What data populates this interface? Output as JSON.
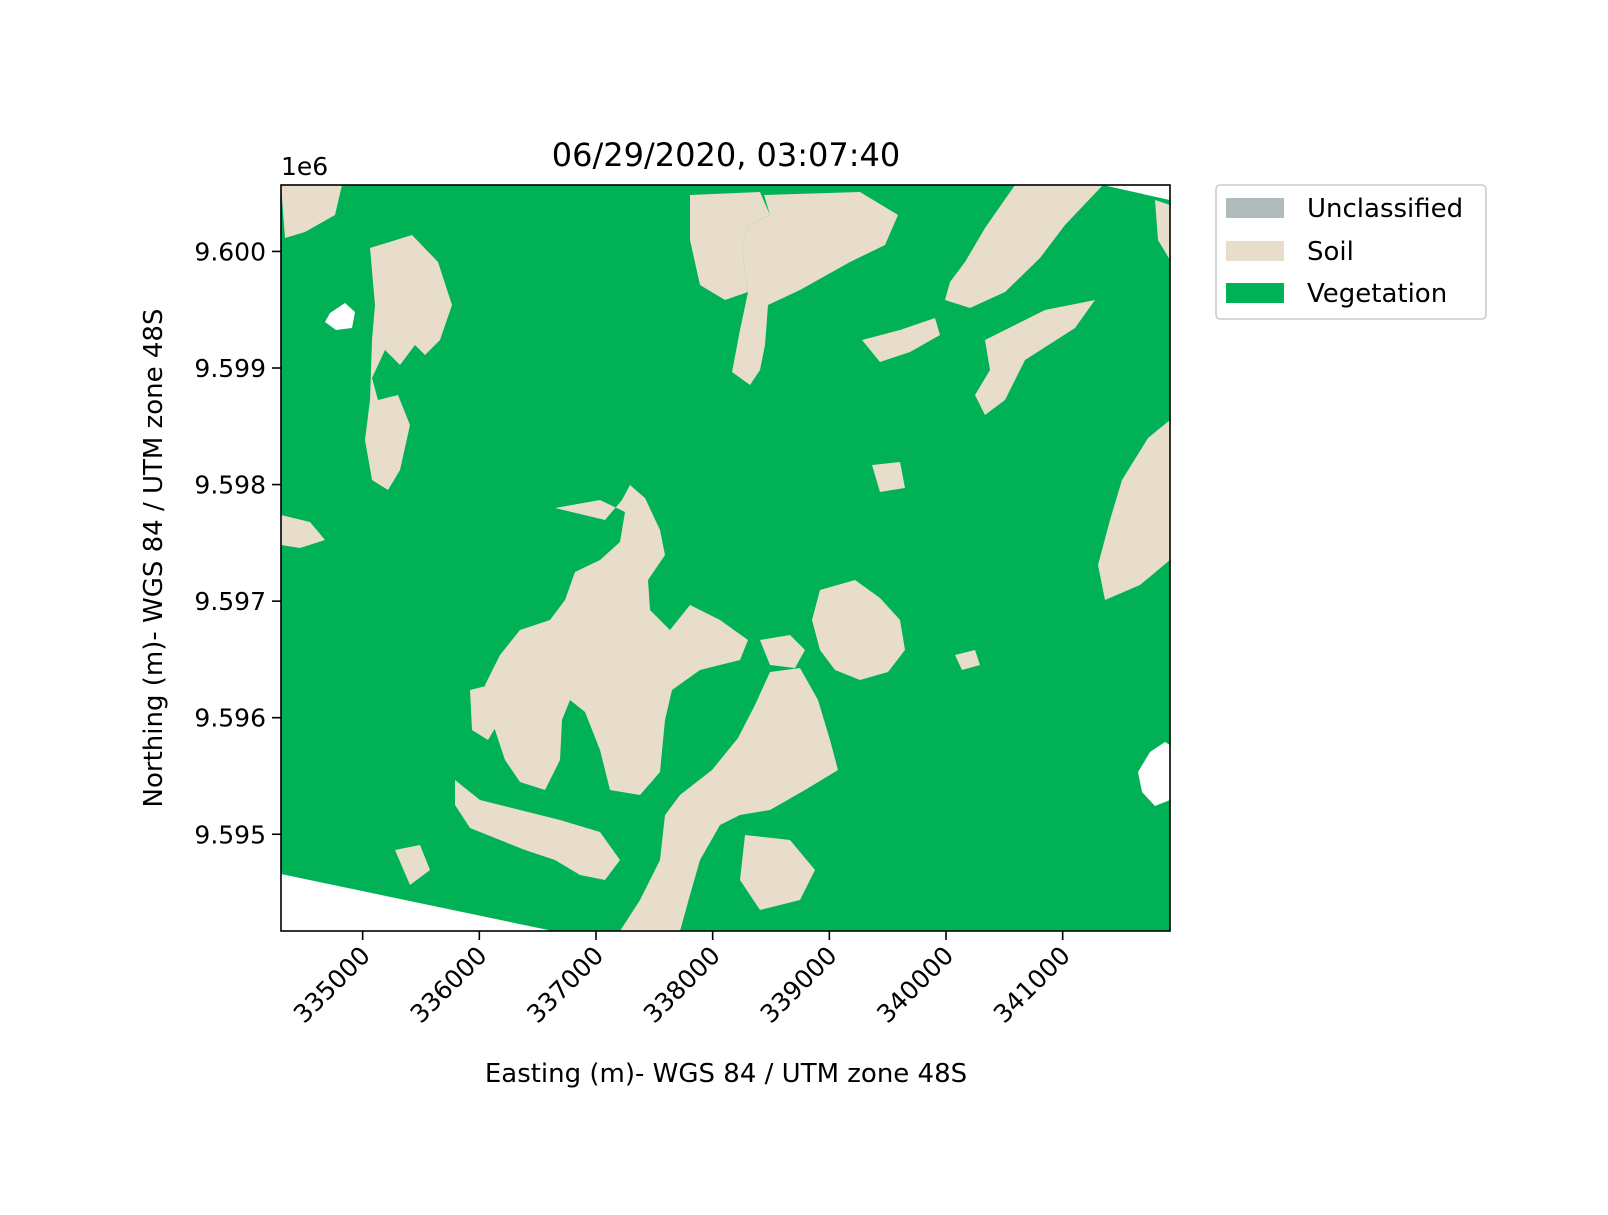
{
  "figure": {
    "title": "06/29/2020, 03:07:40",
    "offset_label": "1e6"
  },
  "map": {
    "x_axis": {
      "label": "Easting (m)- WGS 84 / UTM zone 48S",
      "range": [
        334300,
        341920
      ],
      "ticks": [
        {
          "value": 335000,
          "label": "335000"
        },
        {
          "value": 336000,
          "label": "336000"
        },
        {
          "value": 337000,
          "label": "337000"
        },
        {
          "value": 338000,
          "label": "338000"
        },
        {
          "value": 339000,
          "label": "339000"
        },
        {
          "value": 340000,
          "label": "340000"
        },
        {
          "value": 341000,
          "label": "341000"
        }
      ]
    },
    "y_axis": {
      "label": "Northing (m)- WGS 84 / UTM zone 48S",
      "range": [
        9594170,
        9600570
      ],
      "ticks": [
        {
          "value": 9595000,
          "label": "9.595"
        },
        {
          "value": 9596000,
          "label": "9.596"
        },
        {
          "value": 9597000,
          "label": "9.597"
        },
        {
          "value": 9598000,
          "label": "9.598"
        },
        {
          "value": 9599000,
          "label": "9.599"
        },
        {
          "value": 9600000,
          "label": "9.600"
        }
      ]
    },
    "classes": [
      {
        "name": "Unclassified",
        "color": "#b0bcbc"
      },
      {
        "name": "Soil",
        "color": "#e8ddca"
      },
      {
        "name": "Vegetation",
        "color": "#00b155"
      }
    ],
    "legend_position": "outside upper right",
    "nodata_color": "#ffffff"
  }
}
